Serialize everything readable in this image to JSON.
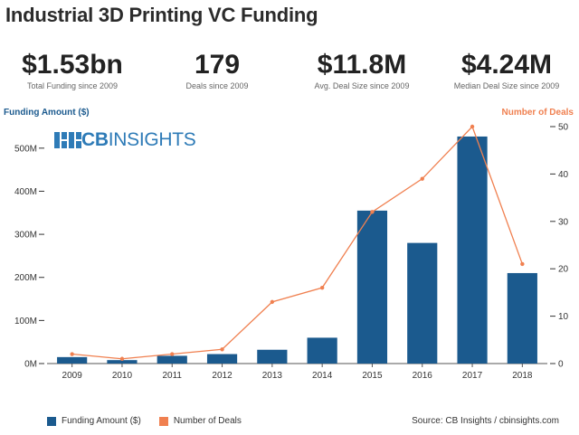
{
  "title": "Industrial 3D Printing VC Funding",
  "kpis": [
    {
      "value": "$1.53bn",
      "label": "Total Funding since 2009"
    },
    {
      "value": "179",
      "label": "Deals since 2009"
    },
    {
      "value": "$11.8M",
      "label": "Avg. Deal Size since 2009"
    },
    {
      "value": "$4.24M",
      "label": "Median Deal Size since 2009"
    }
  ],
  "logo": {
    "text_bold": "CB",
    "text_rest": "INSIGHTS"
  },
  "source": "Source: CB Insights / cbinsights.com",
  "colors": {
    "bar": "#1b5a8e",
    "line": "#f08050",
    "left_axis_title": "#1b5a8e",
    "right_axis_title": "#f08050"
  },
  "chart_data": {
    "type": "bar",
    "categories": [
      "2009",
      "2010",
      "2011",
      "2012",
      "2013",
      "2014",
      "2015",
      "2016",
      "2017",
      "2018"
    ],
    "series": [
      {
        "name": "Funding Amount ($)",
        "type": "bar",
        "axis": "left",
        "values": [
          15,
          8,
          18,
          22,
          32,
          60,
          355,
          280,
          527,
          210
        ]
      },
      {
        "name": "Number of Deals",
        "type": "line",
        "axis": "right",
        "values": [
          2,
          1,
          2,
          3,
          13,
          16,
          32,
          39,
          50,
          21
        ]
      }
    ],
    "ylabel": "Funding Amount ($)",
    "y2label": "Number of Deals",
    "ylim": [
      0,
      550
    ],
    "y2lim": [
      0,
      50
    ],
    "yticks": [
      "0M",
      "100M",
      "200M",
      "300M",
      "400M",
      "500M"
    ],
    "y2ticks": [
      "0",
      "10",
      "20",
      "30",
      "40",
      "50"
    ],
    "grid": false,
    "legend": "bottom-left"
  }
}
